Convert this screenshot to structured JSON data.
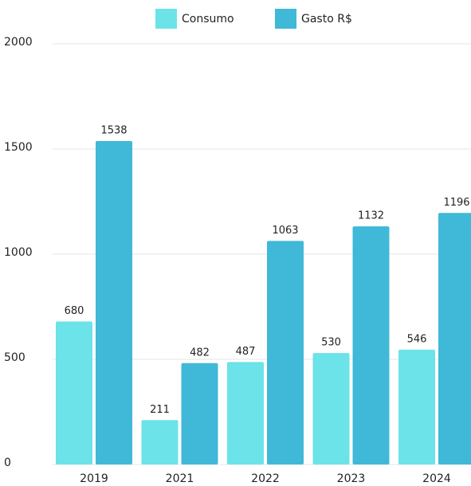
{
  "chart_data": {
    "type": "bar",
    "categories": [
      "2019",
      "2021",
      "2022",
      "2023",
      "2024"
    ],
    "series": [
      {
        "name": "Consumo",
        "color": "#6be3e8",
        "values": [
          680,
          211,
          487,
          530,
          546
        ]
      },
      {
        "name": "Gasto R$",
        "color": "#40b8d8",
        "values": [
          1538,
          482,
          1063,
          1132,
          1196
        ]
      }
    ],
    "ylim": [
      0,
      2000
    ],
    "yticks": [
      0,
      500,
      1000,
      1500,
      2000
    ],
    "grid": true,
    "legend": "top"
  }
}
